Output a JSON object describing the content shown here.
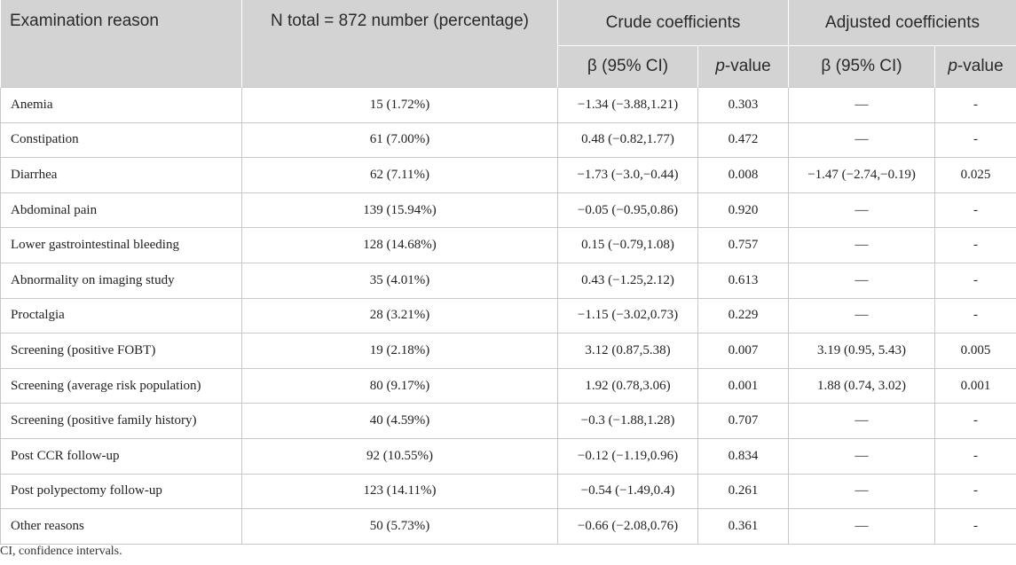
{
  "header": {
    "col_reason": "Examination reason",
    "col_n": "N total = 872 number (percentage)",
    "group_crude": "Crude coefficients",
    "group_adjusted": "Adjusted coefficients",
    "beta_ci": "β (95% CI)",
    "pvalue_prefix": "p",
    "pvalue_suffix": "-value"
  },
  "rows": [
    {
      "reason": "Anemia",
      "n": "15 (1.72%)",
      "crude_beta": "−1.34 (−3.88,1.21)",
      "crude_p": "0.303",
      "adj_beta": "—",
      "adj_p": "-"
    },
    {
      "reason": "Constipation",
      "n": "61 (7.00%)",
      "crude_beta": "0.48 (−0.82,1.77)",
      "crude_p": "0.472",
      "adj_beta": "—",
      "adj_p": "-"
    },
    {
      "reason": "Diarrhea",
      "n": "62 (7.11%)",
      "crude_beta": "−1.73 (−3.0,−0.44)",
      "crude_p": "0.008",
      "adj_beta": "−1.47 (−2.74,−0.19)",
      "adj_p": "0.025"
    },
    {
      "reason": "Abdominal pain",
      "n": "139 (15.94%)",
      "crude_beta": "−0.05 (−0.95,0.86)",
      "crude_p": "0.920",
      "adj_beta": "—",
      "adj_p": "-"
    },
    {
      "reason": "Lower gastrointestinal bleeding",
      "n": "128 (14.68%)",
      "crude_beta": "0.15 (−0.79,1.08)",
      "crude_p": "0.757",
      "adj_beta": "—",
      "adj_p": "-"
    },
    {
      "reason": "Abnormality on imaging study",
      "n": "35 (4.01%)",
      "crude_beta": "0.43 (−1.25,2.12)",
      "crude_p": "0.613",
      "adj_beta": "—",
      "adj_p": "-"
    },
    {
      "reason": "Proctalgia",
      "n": "28 (3.21%)",
      "crude_beta": "−1.15 (−3.02,0.73)",
      "crude_p": "0.229",
      "adj_beta": "—",
      "adj_p": "-"
    },
    {
      "reason": "Screening (positive FOBT)",
      "n": "19 (2.18%)",
      "crude_beta": "3.12 (0.87,5.38)",
      "crude_p": "0.007",
      "adj_beta": "3.19 (0.95, 5.43)",
      "adj_p": "0.005"
    },
    {
      "reason": "Screening (average risk population)",
      "n": "80 (9.17%)",
      "crude_beta": "1.92 (0.78,3.06)",
      "crude_p": "0.001",
      "adj_beta": "1.88 (0.74, 3.02)",
      "adj_p": "0.001"
    },
    {
      "reason": "Screening (positive family history)",
      "n": "40 (4.59%)",
      "crude_beta": "−0.3 (−1.88,1.28)",
      "crude_p": "0.707",
      "adj_beta": "—",
      "adj_p": "-"
    },
    {
      "reason": "Post CCR follow-up",
      "n": "92 (10.55%)",
      "crude_beta": "−0.12 (−1.19,0.96)",
      "crude_p": "0.834",
      "adj_beta": "—",
      "adj_p": "-"
    },
    {
      "reason": "Post polypectomy follow-up",
      "n": "123 (14.11%)",
      "crude_beta": "−0.54 (−1.49,0.4)",
      "crude_p": "0.261",
      "adj_beta": "—",
      "adj_p": "-"
    },
    {
      "reason": "Other reasons",
      "n": "50 (5.73%)",
      "crude_beta": "−0.66 (−2.08,0.76)",
      "crude_p": "0.361",
      "adj_beta": "—",
      "adj_p": "-"
    }
  ],
  "footnote": "CI, confidence intervals."
}
